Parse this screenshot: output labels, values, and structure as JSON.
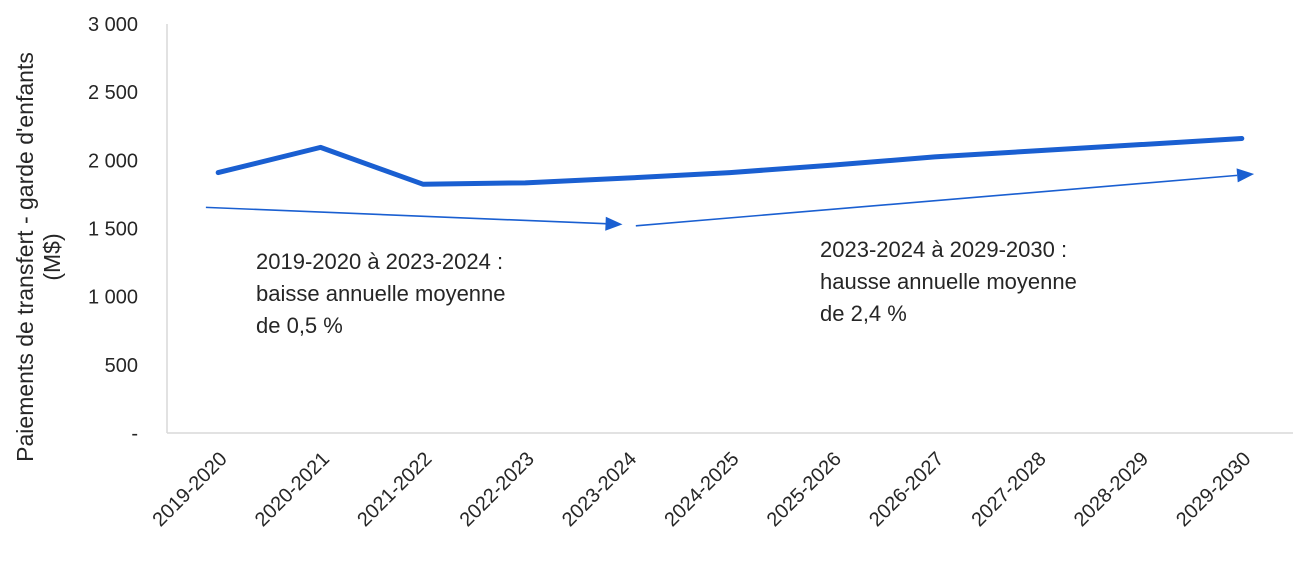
{
  "chart_data": {
    "type": "line",
    "categories": [
      "2019-2020",
      "2020-2021",
      "2021-2022",
      "2022-2023",
      "2023-2024",
      "2024-2025",
      "2025-2026",
      "2026-2027",
      "2027-2028",
      "2028-2029",
      "2029-2030"
    ],
    "series": [
      {
        "values": [
          1910,
          2095,
          1825,
          1835,
          1870,
          1910,
          1965,
          2025,
          2070,
          2115,
          2160
        ]
      }
    ],
    "ylabel_lines": [
      "Paiements de transfert - garde d'enfants",
      "(M$)"
    ],
    "ylim": [
      0,
      3000
    ],
    "yticks": [
      0,
      500,
      1000,
      1500,
      2000,
      2500,
      3000
    ],
    "ytick_labels": [
      "-",
      "500",
      "1 000",
      "1 500",
      "2 000",
      "2 500",
      "3 000"
    ],
    "grid": false,
    "line_color": "#1a5fd1",
    "annotations": [
      {
        "lines": [
          "2019-2020 à 2023-2024 :",
          "baisse annuelle moyenne",
          "de 0,5 %"
        ],
        "arrow_from": {
          "x_category": "2019-2020",
          "offset": -0.12,
          "y": 1655
        },
        "arrow_to": {
          "x_category": "2023-2024",
          "offset": -0.05,
          "y": 1530
        }
      },
      {
        "lines": [
          "2023-2024 à 2029-2030 :",
          "hausse annuelle moyenne",
          "de 2,4 %"
        ],
        "arrow_from": {
          "x_category": "2023-2024",
          "offset": 0.08,
          "y": 1520
        },
        "arrow_to": {
          "x_category": "2029-2030",
          "offset": 0.12,
          "y": 1900
        }
      }
    ]
  }
}
